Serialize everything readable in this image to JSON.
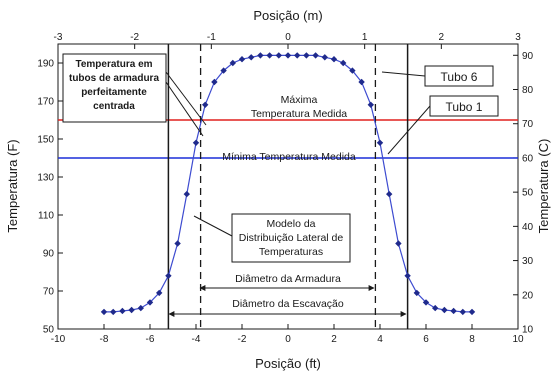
{
  "chart_data": {
    "type": "line",
    "title": "",
    "xlabel": "Posição (ft)",
    "x2label": "Posição (m)",
    "ylabel": "Temperatura (F)",
    "y2label": "Temperatura (C)",
    "xlim": [
      -10,
      10
    ],
    "ylim": [
      50,
      200
    ],
    "x2lim": [
      -3,
      3
    ],
    "y2lim": [
      10,
      93.3
    ],
    "x_ticks": [
      -10,
      -8,
      -6,
      -4,
      -2,
      0,
      2,
      4,
      6,
      8,
      10
    ],
    "y_ticks": [
      50,
      70,
      90,
      110,
      130,
      150,
      170,
      190
    ],
    "x2_ticks": [
      -3,
      -2,
      -1,
      0,
      1,
      2,
      3
    ],
    "y2_ticks": [
      10,
      20,
      30,
      40,
      50,
      60,
      70,
      80,
      90
    ],
    "grid": false,
    "series": [
      {
        "color": "#1f2a8c",
        "x": [
          -8,
          -7.6,
          -7.2,
          -6.8,
          -6.4,
          -6,
          -5.6,
          -5.2,
          -4.8,
          -4.4,
          -4,
          -3.6,
          -3.2,
          -2.8,
          -2.4,
          -2,
          -1.6,
          -1.2,
          -0.8,
          -0.4,
          0,
          0.4,
          0.8,
          1.2,
          1.6,
          2,
          2.4,
          2.8,
          3.2,
          3.6,
          4,
          4.4,
          4.8,
          5.2,
          5.6,
          6,
          6.4,
          6.8,
          7.2,
          7.6,
          8
        ],
        "y": [
          59,
          59,
          59.5,
          60,
          61,
          64,
          69,
          78,
          95,
          121,
          148,
          168,
          180,
          186,
          190,
          192,
          193,
          194,
          194,
          194,
          194,
          194,
          194,
          194,
          193,
          192,
          190,
          186,
          180,
          168,
          148,
          121,
          95,
          78,
          69,
          64,
          61,
          60,
          59.5,
          59,
          59
        ]
      }
    ],
    "reference_lines": [
      {
        "axis": "y",
        "value": 160,
        "color": "#e0211f",
        "label": "Máxima Temperatura Medida",
        "label_lines": [
          "Máxima",
          "Temperatura Medida"
        ]
      },
      {
        "axis": "y",
        "value": 140,
        "color": "#1c2fd8",
        "label": "Mínima Temperatura Medida",
        "label_lines": [
          "Mínima Temperatura Medida"
        ]
      },
      {
        "axis": "x",
        "value": -5.2,
        "style": "solid"
      },
      {
        "axis": "x",
        "value": 5.2,
        "style": "solid"
      },
      {
        "axis": "x",
        "value": -3.8,
        "style": "dashed"
      },
      {
        "axis": "x",
        "value": 3.8,
        "style": "dashed"
      }
    ],
    "annotations": {
      "tubo6": "Tubo 6",
      "tubo1": "Tubo 1",
      "temperatura_tubos": [
        "Temperatura em",
        "tubos de armadura",
        "perfeitamente",
        "centrada"
      ],
      "modelo": [
        "Modelo da",
        "Distribuição Lateral de",
        "Temperaturas"
      ],
      "diametro_armadura": "Diâmetro da Armadura",
      "diametro_escavacao": "Diâmetro da Escavação"
    }
  }
}
